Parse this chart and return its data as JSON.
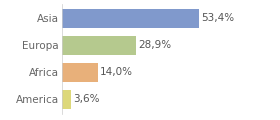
{
  "categories": [
    "America",
    "Africa",
    "Europa",
    "Asia"
  ],
  "values": [
    3.6,
    14.0,
    28.9,
    53.4
  ],
  "colors": [
    "#ddd87a",
    "#e8b07a",
    "#b5c98e",
    "#8099cc"
  ],
  "labels": [
    "3,6%",
    "14,0%",
    "28,9%",
    "53,4%"
  ],
  "background_color": "#ffffff",
  "bar_height": 0.72,
  "label_fontsize": 7.5,
  "tick_fontsize": 7.5,
  "xlim": [
    0,
    72
  ],
  "label_color": "#555555",
  "tick_color": "#666666"
}
